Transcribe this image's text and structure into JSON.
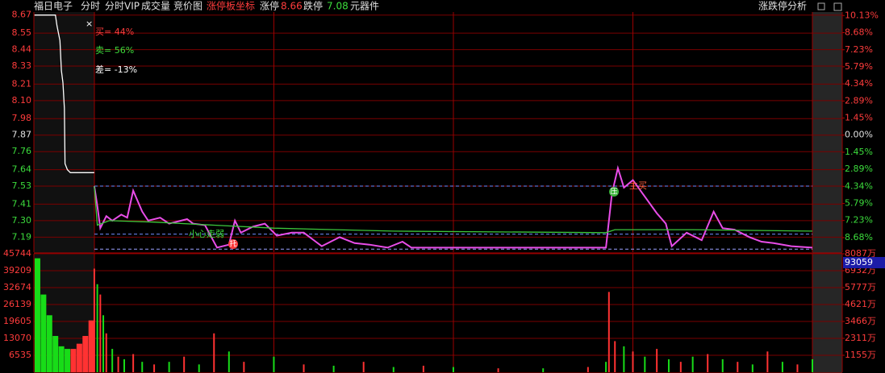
{
  "toolbar": [
    {
      "text": "福日电子",
      "color": "#e0e0e0"
    },
    {
      "text": "分时",
      "color": "#e0e0e0"
    },
    {
      "text": "分时VIP",
      "color": "#e0e0e0"
    },
    {
      "text": "成交量",
      "color": "#e0e0e0"
    },
    {
      "text": "竞价图",
      "color": "#e0e0e0"
    },
    {
      "text": "涨停板坐标",
      "color": "#ff3c3c"
    },
    {
      "text": "涨停",
      "color": "#e0e0e0"
    },
    {
      "text": 8.66,
      "color": "#ff3c3c"
    },
    {
      "text": "跌停",
      "color": "#e0e0e0"
    },
    {
      "text": 7.08,
      "color": "#3cdc3c"
    },
    {
      "text": "元器件",
      "color": "#e0e0e0"
    },
    {
      "text": "涨跌停分析",
      "color": "#e0e0e0"
    }
  ],
  "chart_data": [
    {
      "type": "line",
      "base": 7.87,
      "ylim": [
        7.09,
        8.69
      ],
      "yticks": [
        8.67,
        8.55,
        8.44,
        8.33,
        8.21,
        {
          "value": 8.1,
          "label": "8.10"
        },
        7.98,
        7.87,
        7.76,
        7.64,
        7.53,
        7.41,
        {
          "value": 7.3,
          "label": "7.30"
        },
        7.19
      ],
      "y2lim": [
        -9.91,
        10.42
      ],
      "y2ticks": [
        {
          "value": 10.13,
          "label": "10.13%"
        },
        {
          "value": 8.68,
          "label": "8.68%"
        },
        {
          "value": 7.23,
          "label": "7.23%"
        },
        {
          "value": 5.79,
          "label": "5.79%"
        },
        {
          "value": 4.34,
          "label": "4.34%"
        },
        {
          "value": 2.89,
          "label": "2.89%"
        },
        {
          "value": 1.45,
          "label": "1.45%"
        },
        {
          "value": 0,
          "label": "0.00%"
        },
        {
          "value": -1.45,
          "label": "1.45%"
        },
        {
          "value": -2.89,
          "label": "2.89%"
        },
        {
          "value": -4.34,
          "label": "4.34%"
        },
        {
          "value": -5.79,
          "label": "5.79%"
        },
        {
          "value": -7.23,
          "label": "7.23%"
        },
        {
          "value": -8.68,
          "label": "8.68%"
        }
      ],
      "xlim": [
        -20.2,
        240
      ],
      "grid": true,
      "reference_lines": [
        {
          "value": 7.53,
          "color": "#6f8cff"
        },
        {
          "value": 7.21,
          "color": "#6f8cff"
        },
        {
          "value": 7.11,
          "color": "#9aa0ff"
        }
      ],
      "series": [
        {
          "color": "#ffffff",
          "x": [
            -20,
            -13,
            -12.5,
            -11.5,
            -11,
            -10.5,
            -10,
            -9.8,
            -9,
            -8,
            0
          ],
          "values": [
            8.67,
            8.67,
            8.6,
            8.5,
            8.3,
            8.22,
            8.05,
            7.68,
            7.64,
            7.62,
            7.62
          ]
        },
        {
          "color": "#e84de8",
          "x": [
            0,
            1,
            2,
            4,
            6,
            9,
            11,
            13,
            16,
            18,
            22,
            25,
            31,
            33,
            37,
            41,
            45,
            47,
            49,
            53,
            57,
            61,
            66,
            70,
            74,
            76,
            82,
            87,
            92,
            98,
            103,
            106,
            130,
            171,
            173,
            175,
            177,
            180,
            184,
            188,
            191,
            193,
            198,
            203,
            207,
            210,
            214,
            219,
            223,
            227,
            233,
            240
          ],
          "values": [
            7.53,
            7.4,
            7.25,
            7.33,
            7.3,
            7.34,
            7.32,
            7.5,
            7.36,
            7.3,
            7.32,
            7.28,
            7.31,
            7.28,
            7.27,
            7.12,
            7.14,
            7.3,
            7.22,
            7.26,
            7.28,
            7.2,
            7.22,
            7.22,
            7.16,
            7.13,
            7.19,
            7.15,
            7.14,
            7.12,
            7.16,
            7.12,
            7.12,
            7.12,
            7.48,
            7.65,
            7.52,
            7.57,
            7.46,
            7.35,
            7.28,
            7.13,
            7.22,
            7.17,
            7.36,
            7.25,
            7.24,
            7.19,
            7.16,
            7.15,
            7.13,
            7.12
          ]
        },
        {
          "color": "#3cc83c",
          "x": [
            0,
            1,
            5,
            20,
            40,
            60,
            100,
            171,
            174,
            200,
            240
          ],
          "values": [
            7.53,
            7.27,
            7.3,
            7.29,
            7.27,
            7.25,
            7.23,
            7.22,
            7.24,
            7.24,
            7.23
          ]
        }
      ],
      "annotations": [
        {
          "text": "买= 44%",
          "color": "#ff3c3c"
        },
        {
          "text": "卖= 56%",
          "color": "#3cdc3c"
        },
        {
          "text": "差= -13%",
          "color": "#ffffff"
        },
        {
          "text": "小心走弱",
          "color": "#3cdc3c"
        },
        {
          "text": "托",
          "color": "#ff3c3c"
        },
        {
          "text": "压",
          "color": "#3cb43c"
        },
        {
          "text": "主买",
          "color": "#ff6040"
        }
      ]
    },
    {
      "type": "bar",
      "ylim": [
        0,
        45744
      ],
      "yticks": [
        45744,
        39209,
        32674,
        26139,
        19605,
        13070,
        6535
      ],
      "y2lim": [
        0,
        8087
      ],
      "y2ticks": [
        {
          "value": 8087,
          "label": "8087万"
        },
        {
          "value": 6932,
          "label": "6932万"
        },
        {
          "value": 5777,
          "label": "5777万"
        },
        {
          "value": 4621,
          "label": "4621万"
        },
        {
          "value": 3466,
          "label": "3466万"
        },
        {
          "value": 2311,
          "label": "2311万"
        },
        {
          "value": 1155,
          "label": "1155万"
        }
      ],
      "xlim": [
        -20.2,
        240
      ],
      "x": [
        -19,
        -17,
        -15,
        -13,
        -11,
        -9,
        -7,
        -5,
        -3,
        -1,
        0,
        1,
        2,
        3,
        4,
        6,
        8,
        10,
        13,
        16,
        20,
        25,
        30,
        35,
        40,
        45,
        50,
        60,
        70,
        80,
        90,
        100,
        110,
        120,
        135,
        150,
        165,
        171,
        172,
        174,
        177,
        180,
        184,
        188,
        192,
        196,
        200,
        205,
        210,
        215,
        220,
        225,
        230,
        235,
        240
      ],
      "values": [
        44000,
        30000,
        22000,
        14000,
        10000,
        9000,
        9000,
        11000,
        14000,
        20000,
        40000,
        34000,
        30000,
        22000,
        15000,
        9000,
        6000,
        5000,
        7000,
        4000,
        3000,
        4000,
        6000,
        3000,
        15000,
        8000,
        4000,
        6000,
        3000,
        2500,
        4000,
        2000,
        2500,
        2000,
        1500,
        1500,
        2000,
        4000,
        31000,
        12000,
        10000,
        8000,
        6000,
        9000,
        5000,
        4000,
        6000,
        7000,
        5000,
        4000,
        3000,
        8000,
        4000,
        3000,
        5000
      ],
      "colors": [
        "#18dc18",
        "#18dc18",
        "#18dc18",
        "#18dc18",
        "#18dc18",
        "#18dc18",
        "#ff3232",
        "#ff3232",
        "#ff3232",
        "#ff3232",
        "#ff3232",
        "#18dc18",
        "#ff3232",
        "#18dc18",
        "#ff3232",
        "#18dc18",
        "#ff3232",
        "#18dc18",
        "#ff3232",
        "#18dc18",
        "#ff3232",
        "#18dc18",
        "#ff3232",
        "#18dc18",
        "#ff3232",
        "#18dc18",
        "#ff3232",
        "#18dc18",
        "#ff3232",
        "#18dc18",
        "#ff3232",
        "#18dc18",
        "#ff3232",
        "#18dc18",
        "#ff3232",
        "#18dc18",
        "#ff3232",
        "#18dc18",
        "#ff3232",
        "#ff3232",
        "#18dc18",
        "#ff3232",
        "#18dc18",
        "#ff3232",
        "#18dc18",
        "#ff3232",
        "#18dc18",
        "#ff3232",
        "#18dc18",
        "#ff3232",
        "#18dc18",
        "#ff3232",
        "#18dc18",
        "#ff3232",
        "#18dc18"
      ],
      "current": 93059
    }
  ]
}
